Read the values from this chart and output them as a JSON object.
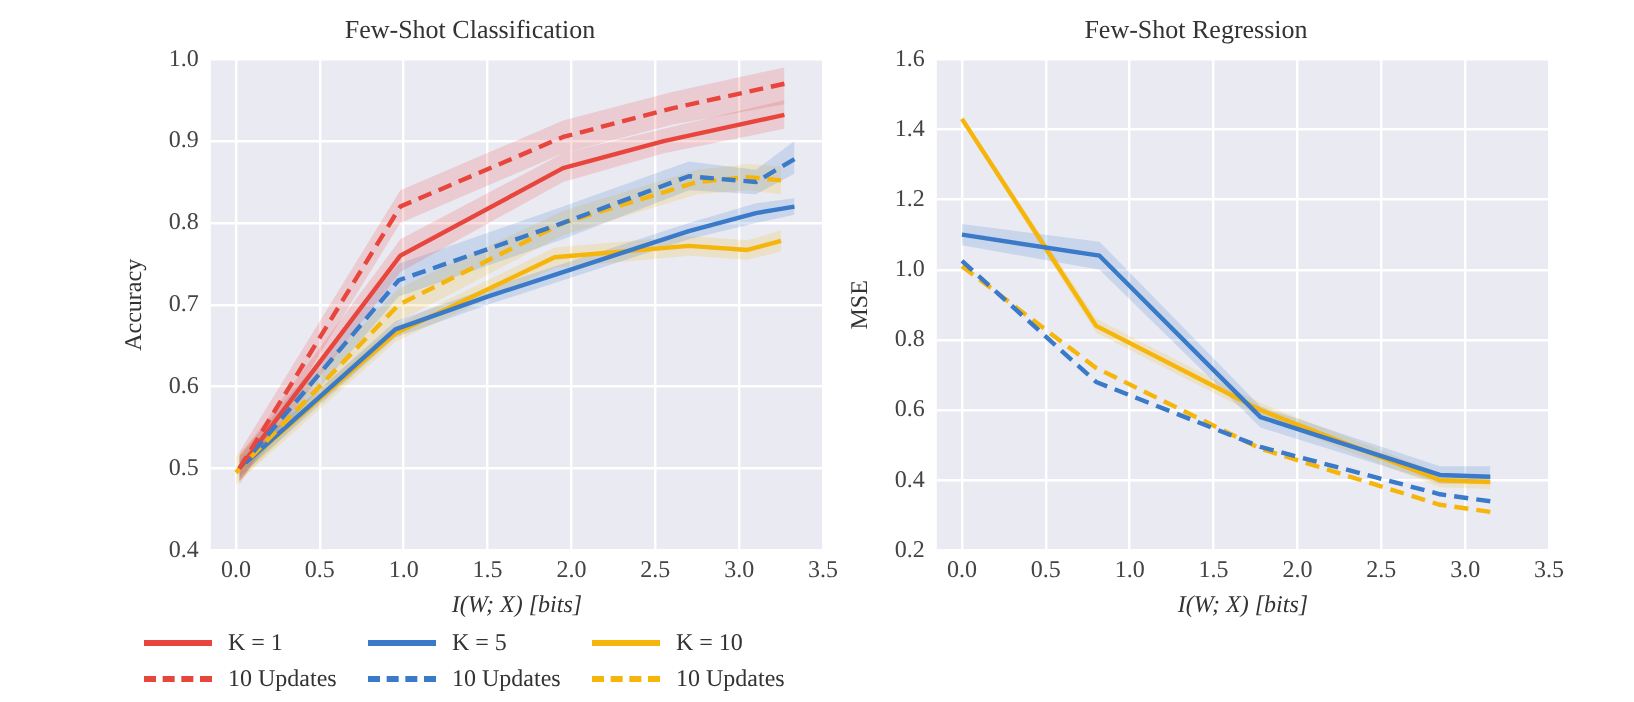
{
  "chart_data": [
    {
      "type": "line",
      "title": "Few-Shot Classification",
      "xlabel": "I(W; X) [bits]",
      "ylabel": "Accuracy",
      "xlim": [
        -0.15,
        3.5
      ],
      "ylim": [
        0.4,
        1.0
      ],
      "xticks": [
        {
          "value": 0,
          "label": "0.0"
        },
        0.5,
        {
          "value": 1,
          "label": "1.0"
        },
        1.5,
        {
          "value": 2,
          "label": "2.0"
        },
        2.5,
        {
          "value": 3,
          "label": "3.0"
        },
        3.5
      ],
      "yticks": [
        0.4,
        0.5,
        0.6,
        0.7,
        0.8,
        0.9,
        {
          "value": 1,
          "label": "1.0"
        }
      ],
      "grid": true,
      "legend": "bottom",
      "marker": "none",
      "series": [
        {
          "name": "K = 1",
          "color": "#e8453c",
          "line_style": "solid",
          "x": [
            0.02,
            0.98,
            1.95,
            2.55,
            3.27
          ],
          "values": [
            0.5,
            0.76,
            0.867,
            0.9,
            0.932
          ],
          "lower": [
            0.485,
            0.74,
            0.85,
            0.885,
            0.915
          ],
          "upper": [
            0.515,
            0.78,
            0.885,
            0.915,
            0.95
          ]
        },
        {
          "name": "10 Updates",
          "color": "#e8453c",
          "line_style": "dashed",
          "x": [
            0.02,
            0.98,
            1.95,
            2.6,
            3.27
          ],
          "values": [
            0.5,
            0.82,
            0.905,
            0.94,
            0.97
          ],
          "lower": [
            0.48,
            0.8,
            0.885,
            0.92,
            0.945
          ],
          "upper": [
            0.52,
            0.84,
            0.925,
            0.96,
            0.99
          ]
        },
        {
          "name": "K = 5",
          "color": "#3a7ac8",
          "line_style": "solid",
          "x": [
            0.02,
            0.95,
            1.5,
            1.95,
            2.7,
            3.1,
            3.33
          ],
          "values": [
            0.5,
            0.67,
            0.71,
            0.74,
            0.79,
            0.812,
            0.82
          ],
          "lower": [
            0.49,
            0.66,
            0.7,
            0.73,
            0.78,
            0.8,
            0.81
          ],
          "upper": [
            0.51,
            0.68,
            0.72,
            0.75,
            0.8,
            0.824,
            0.83
          ]
        },
        {
          "name": "10 Updates",
          "color": "#3a7ac8",
          "line_style": "dashed",
          "x": [
            0.02,
            0.97,
            1.95,
            2.7,
            3.1,
            3.33
          ],
          "values": [
            0.5,
            0.73,
            0.8,
            0.857,
            0.85,
            0.878
          ],
          "lower": [
            0.485,
            0.71,
            0.78,
            0.84,
            0.835,
            0.86
          ],
          "upper": [
            0.515,
            0.75,
            0.82,
            0.875,
            0.865,
            0.9
          ]
        },
        {
          "name": "K = 10",
          "color": "#f5b50a",
          "line_style": "solid",
          "x": [
            0.02,
            0.95,
            1.9,
            2.7,
            3.05,
            3.25
          ],
          "values": [
            0.5,
            0.665,
            0.758,
            0.772,
            0.767,
            0.778
          ],
          "lower": [
            0.485,
            0.655,
            0.745,
            0.76,
            0.755,
            0.765
          ],
          "upper": [
            0.515,
            0.675,
            0.77,
            0.784,
            0.779,
            0.791
          ]
        },
        {
          "name": "10 Updates",
          "color": "#f5b50a",
          "line_style": "dashed",
          "x": [
            0.0,
            0.97,
            1.95,
            2.75,
            3.05,
            3.25
          ],
          "values": [
            0.495,
            0.7,
            0.8,
            0.85,
            0.856,
            0.852
          ],
          "lower": [
            0.48,
            0.68,
            0.785,
            0.835,
            0.84,
            0.835
          ],
          "upper": [
            0.515,
            0.72,
            0.815,
            0.865,
            0.872,
            0.869
          ]
        }
      ]
    },
    {
      "type": "line",
      "title": "Few-Shot Regression",
      "xlabel": "I(W; X) [bits]",
      "ylabel": "MSE",
      "xlim": [
        -0.15,
        3.5
      ],
      "ylim": [
        0.2,
        1.6
      ],
      "xticks": [
        {
          "value": 0,
          "label": "0.0"
        },
        0.5,
        {
          "value": 1,
          "label": "1.0"
        },
        1.5,
        {
          "value": 2,
          "label": "2.0"
        },
        2.5,
        {
          "value": 3,
          "label": "3.0"
        },
        3.5
      ],
      "yticks": [
        0.2,
        0.4,
        0.6,
        0.8,
        {
          "value": 1,
          "label": "1.0"
        },
        1.2,
        1.4,
        1.6
      ],
      "grid": true,
      "marker": "none",
      "series": [
        {
          "color": "#3a7ac8",
          "line_style": "solid",
          "x": [
            0,
            0.82,
            1.78,
            2.85,
            3.15
          ],
          "values": [
            1.1,
            1.04,
            0.58,
            0.415,
            0.41
          ],
          "lower": [
            1.07,
            1.0,
            0.55,
            0.39,
            0.39
          ],
          "upper": [
            1.13,
            1.08,
            0.61,
            0.44,
            0.44
          ]
        },
        {
          "color": "#f5b50a",
          "line_style": "solid",
          "x": [
            0,
            0.8,
            1.78,
            2.85,
            3.15
          ],
          "values": [
            1.43,
            0.84,
            0.6,
            0.4,
            0.395
          ],
          "lower": [
            1.42,
            0.82,
            0.58,
            0.38,
            0.375
          ],
          "upper": [
            1.44,
            0.86,
            0.62,
            0.42,
            0.415
          ]
        },
        {
          "color": "#3a7ac8",
          "line_style": "dashed",
          "x": [
            0,
            0.8,
            1.78,
            2.85,
            3.15
          ],
          "values": [
            1.025,
            0.68,
            0.495,
            0.36,
            0.34
          ]
        },
        {
          "color": "#f5b50a",
          "line_style": "dashed",
          "x": [
            0,
            0.8,
            1.78,
            2.85,
            3.15
          ],
          "values": [
            1.01,
            0.72,
            0.49,
            0.33,
            0.31
          ]
        }
      ]
    }
  ]
}
